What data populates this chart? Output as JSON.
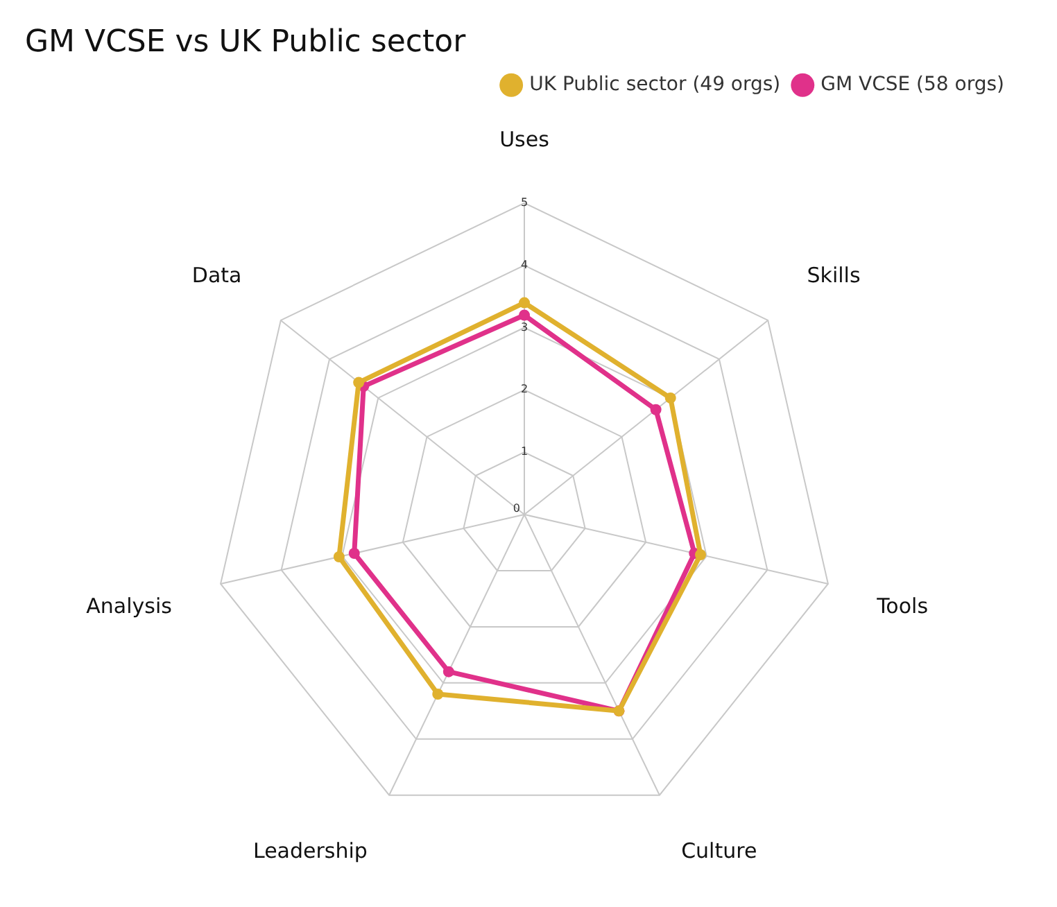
{
  "chart_data": {
    "type": "radar",
    "title": "GM VCSE vs UK Public sector",
    "categories": [
      "Uses",
      "Skills",
      "Tools",
      "Culture",
      "Leadership",
      "Analysis",
      "Data"
    ],
    "series": [
      {
        "name": "UK Public sector (49 orgs)",
        "color": "#e0b12e",
        "values": [
          3.4,
          3.0,
          2.9,
          3.5,
          3.2,
          3.05,
          3.4
        ]
      },
      {
        "name": "GM VCSE (58 orgs)",
        "color": "#e0318a",
        "values": [
          3.2,
          2.7,
          2.8,
          3.5,
          2.8,
          2.8,
          3.3
        ]
      }
    ],
    "ylim": [
      0,
      5
    ],
    "yticks": [
      0,
      1,
      2,
      3,
      4,
      5
    ],
    "grid": true,
    "legend": "top right",
    "marker": "circle",
    "line_style": "solid"
  }
}
